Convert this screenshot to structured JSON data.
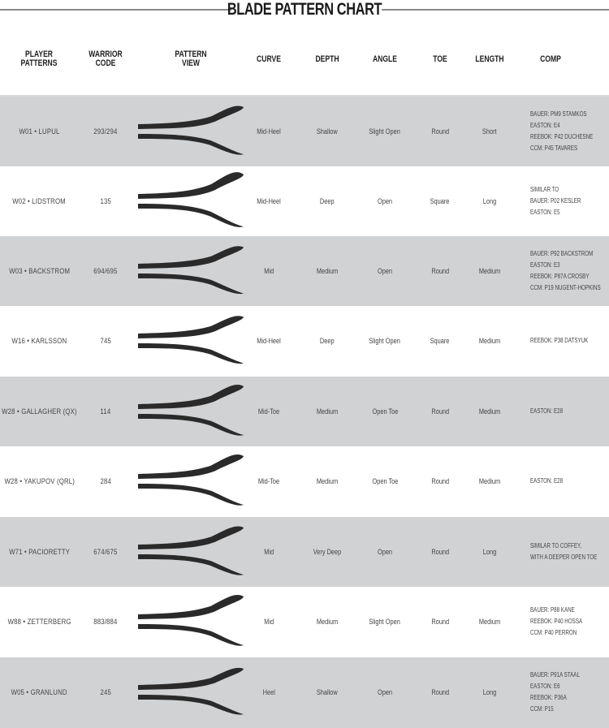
{
  "title": "BLADE PATTERN CHART",
  "headers": {
    "player": "PLAYER\nPATTERNS",
    "code": "WARRIOR\nCODE",
    "pattern": "PATTERN\nVIEW",
    "curve": "CURVE",
    "depth": "DEPTH",
    "angle": "ANGLE",
    "toe": "TOE",
    "length": "LENGTH",
    "comp": "COMP"
  },
  "colors": {
    "row_gray": "#d1d2d4",
    "blade": "#2a2a2a",
    "text": "#444444"
  },
  "rows": [
    {
      "player": "W01 • LUPUL",
      "code": "293/294",
      "curve": "Mid-Heel",
      "depth": "Shallow",
      "angle": "Slight Open",
      "toe": "Round",
      "length": "Short",
      "comp": [
        "BAUER: PM9 STAMKOS",
        "EASTON: E4",
        "REEBOK: P42 DUCHESNE",
        "CCM: P45 TAVARES"
      ]
    },
    {
      "player": "W02 • LIDSTROM",
      "code": "135",
      "curve": "Mid-Heel",
      "depth": "Deep",
      "angle": "Open",
      "toe": "Square",
      "length": "Long",
      "comp": [
        "SIMILAR TO",
        "BAUER: P02 KESLER",
        "EASTON: E5"
      ]
    },
    {
      "player": "W03 • BACKSTROM",
      "code": "694/695",
      "curve": "Mid",
      "depth": "Medium",
      "angle": "Open",
      "toe": "Round",
      "length": "Medium",
      "comp": [
        "BAUER: P92 BACKSTROM",
        "EASTON: E3",
        "REEBOK: P87A CROSBY",
        "CCM: P19 NUGENT-HOPKINS"
      ]
    },
    {
      "player": "W16 • KARLSSON",
      "code": "745",
      "curve": "Mid-Heel",
      "depth": "Deep",
      "angle": "Slight Open",
      "toe": "Square",
      "length": "Medium",
      "comp": [
        "REEBOK: P38 DATSYUK"
      ]
    },
    {
      "player": "W28 • GALLAGHER (QX)",
      "code": "114",
      "curve": "Mid-Toe",
      "depth": "Medium",
      "angle": "Open Toe",
      "toe": "Round",
      "length": "Medium",
      "comp": [
        "EASTON: E28"
      ]
    },
    {
      "player": "W28 • YAKUPOV (QRL)",
      "code": "284",
      "curve": "Mid-Toe",
      "depth": "Medium",
      "angle": "Open Toe",
      "toe": "Round",
      "length": "Medium",
      "comp": [
        "EASTON: E28"
      ]
    },
    {
      "player": "W71 • PACIORETTY",
      "code": "674/675",
      "curve": "Mid",
      "depth": "Very Deep",
      "angle": "Open",
      "toe": "Round",
      "length": "Long",
      "comp": [
        "SIMILAR TO COFFEY,",
        "WITH A DEEPER OPEN TOE"
      ]
    },
    {
      "player": "W88 • ZETTERBERG",
      "code": "883/884",
      "curve": "Mid",
      "depth": "Medium",
      "angle": "Slight Open",
      "toe": "Round",
      "length": "Medium",
      "comp": [
        "BAUER: P88 KANE",
        "REEBOK: P40 HOSSA",
        "CCM: P40 PERRON"
      ]
    },
    {
      "player": "W05 • GRANLUND",
      "code": "245",
      "curve": "Heel",
      "depth": "Shallow",
      "angle": "Open",
      "toe": "Round",
      "length": "Long",
      "comp": [
        "BAUER: P91A STAAL",
        "EASTON: E6",
        "REEBOK: P36A",
        "CCM: P15"
      ]
    }
  ]
}
